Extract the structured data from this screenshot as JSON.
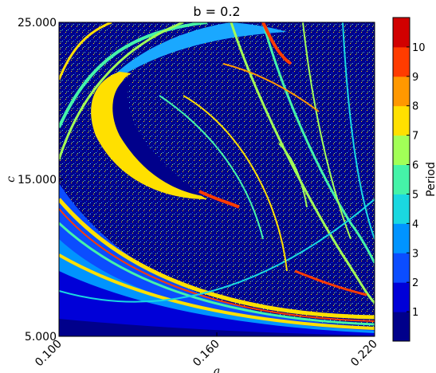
{
  "chart_data": {
    "type": "heatmap",
    "title": "b = 0.2",
    "xlabel": "a",
    "ylabel": "c",
    "xlim": [
      0.1,
      0.22
    ],
    "ylim": [
      5.0,
      25.0
    ],
    "x_ticks": [
      0.1,
      0.16,
      0.22
    ],
    "x_tick_labels": [
      "0.100",
      "0.160",
      "0.220"
    ],
    "y_ticks": [
      5.0,
      15.0,
      25.0
    ],
    "y_tick_labels": [
      "5.000",
      "15.000",
      "25.000"
    ],
    "colorbar": {
      "label": "Period",
      "min": 0,
      "max": 11,
      "tick_labels": [
        "1",
        "2",
        "3",
        "4",
        "5",
        "6",
        "7",
        "8",
        "9",
        "10"
      ],
      "colors": [
        "#00008b",
        "#0000d8",
        "#0b4dff",
        "#0094ff",
        "#1ad8e0",
        "#45f3a8",
        "#a2ff57",
        "#ffe000",
        "#ff9800",
        "#ff3c00",
        "#d10000"
      ]
    },
    "dominant_period": 1
  }
}
